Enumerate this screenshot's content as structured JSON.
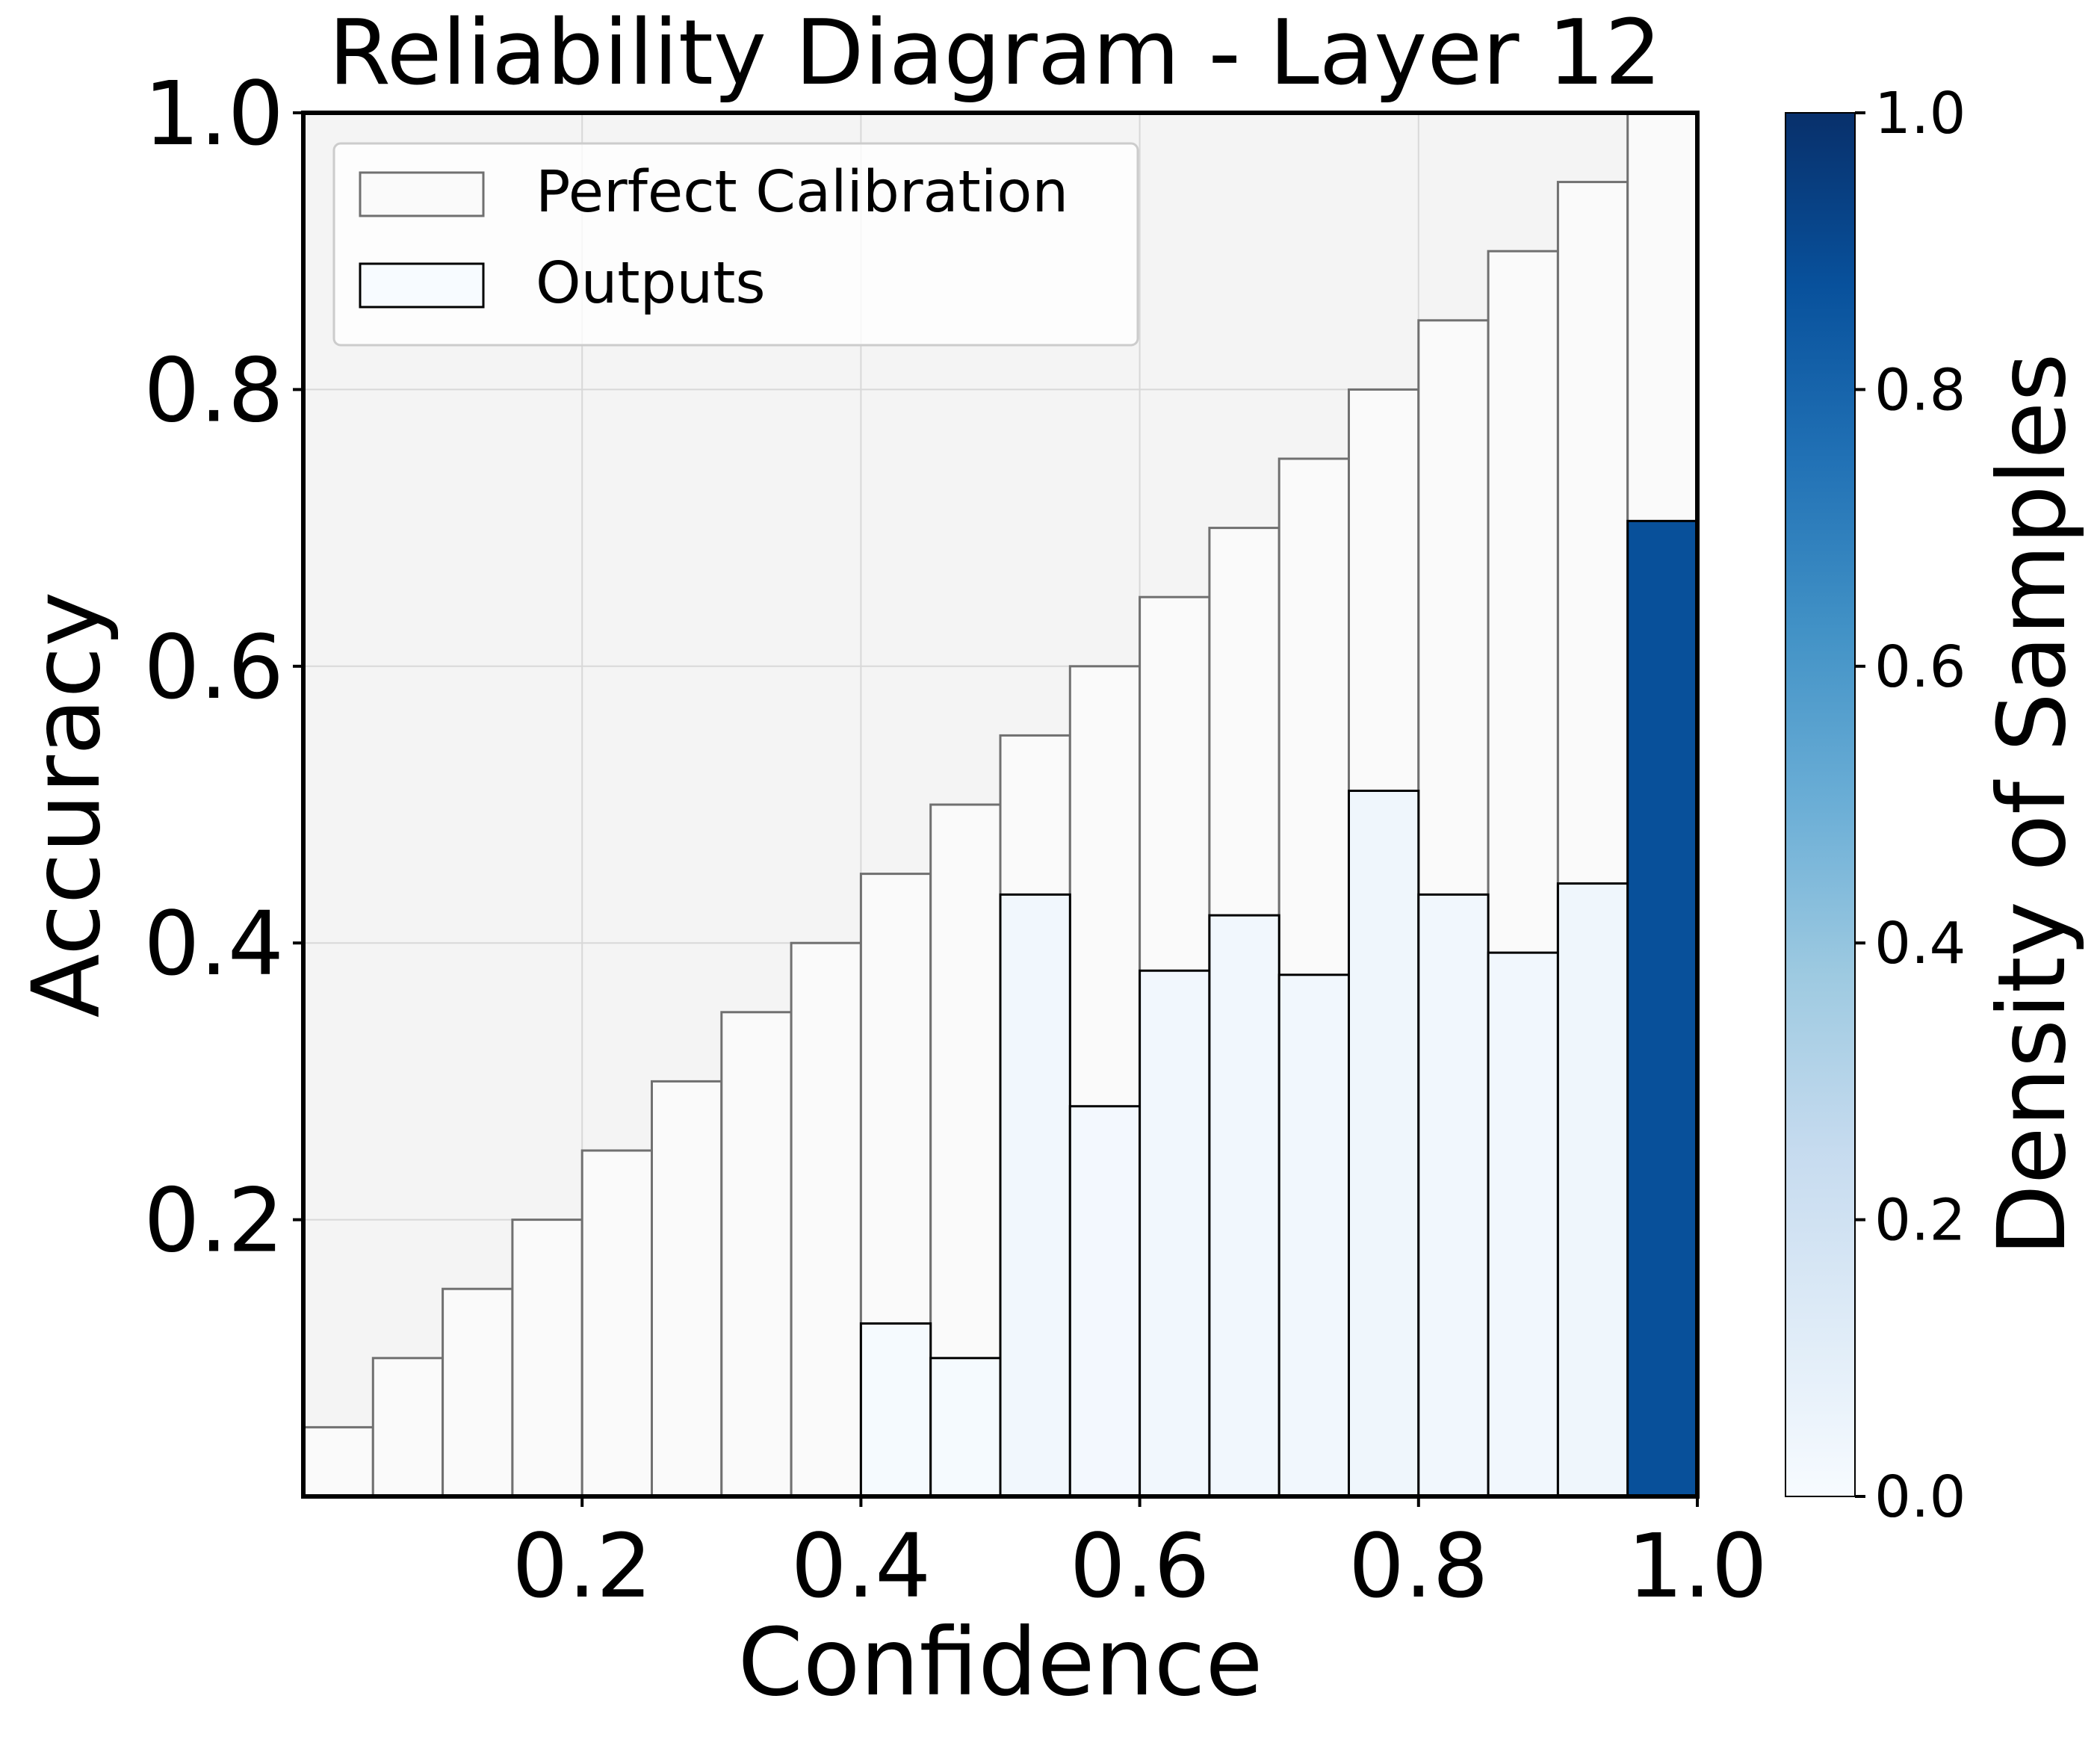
{
  "chart_data": {
    "type": "bar",
    "title": "Reliability Diagram - Layer 12",
    "xlabel": "Confidence",
    "ylabel": "Accuracy",
    "xlim": [
      0,
      1
    ],
    "ylim": [
      0,
      1
    ],
    "x_ticks": [
      "0.2",
      "0.4",
      "0.6",
      "0.8",
      "1.0"
    ],
    "y_ticks": [
      "0.2",
      "0.4",
      "0.6",
      "0.8",
      "1.0"
    ],
    "grid": true,
    "legend_position": "top-left",
    "bin_edges": [
      0.0,
      0.05,
      0.1,
      0.15,
      0.2,
      0.25,
      0.3,
      0.35,
      0.4,
      0.45,
      0.5,
      0.55,
      0.6,
      0.65,
      0.7,
      0.75,
      0.8,
      0.85,
      0.9,
      0.95,
      1.0
    ],
    "series": [
      {
        "name": "Perfect Calibration",
        "values": [
          0.05,
          0.1,
          0.15,
          0.2,
          0.25,
          0.3,
          0.35,
          0.4,
          0.45,
          0.5,
          0.55,
          0.6,
          0.65,
          0.7,
          0.75,
          0.8,
          0.85,
          0.9,
          0.95,
          1.0
        ]
      },
      {
        "name": "Outputs",
        "values": [
          0,
          0,
          0,
          0,
          0,
          0,
          0,
          0,
          0.125,
          0.1,
          0.435,
          0.282,
          0.38,
          0.42,
          0.377,
          0.51,
          0.435,
          0.393,
          0.443,
          0.705
        ],
        "density": [
          0,
          0,
          0,
          0,
          0,
          0,
          0,
          0,
          0.01,
          0.01,
          0.03,
          0.02,
          0.03,
          0.03,
          0.03,
          0.04,
          0.03,
          0.03,
          0.04,
          0.88
        ]
      }
    ],
    "colorbar": {
      "label": "Density of Samples",
      "range": [
        0,
        1
      ],
      "ticks": [
        "0.0",
        "0.2",
        "0.4",
        "0.6",
        "0.8",
        "1.0"
      ],
      "colormap": "Blues"
    },
    "colors": {
      "axes_background": "#f4f4f4",
      "calibration_fill": "#fafafa",
      "calibration_edge": "#707070",
      "outputs_edge": "#000000",
      "grid": "#d8d8d8"
    }
  }
}
